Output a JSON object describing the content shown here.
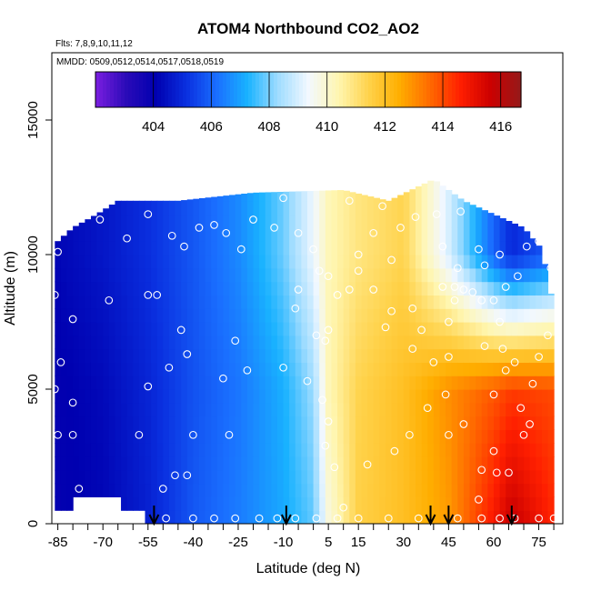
{
  "chart_data": {
    "type": "heatmap",
    "title": "ATOM4 Northbound CO2_AO2",
    "flights_label": "Flts: 7,8,9,10,11,12",
    "dates_label": "MMDD: 0509,0512,0514,0517,0518,0519",
    "xlabel": "Latitude (deg N)",
    "ylabel": "Altitude (m)",
    "xlim": [
      -87,
      83
    ],
    "ylim": [
      0,
      17500
    ],
    "x_ticks": [
      -85,
      -70,
      -55,
      -40,
      -25,
      -10,
      5,
      15,
      30,
      45,
      60,
      75
    ],
    "y_ticks": [
      0,
      5000,
      10000,
      15000
    ],
    "colorbar": {
      "min": 402,
      "max": 416.7,
      "ticks": [
        404,
        406,
        408,
        410,
        412,
        414,
        416
      ],
      "colors": [
        "#7b1ee0",
        "#2b0bb8",
        "#0000b0",
        "#0a30e0",
        "#1a6fff",
        "#19b2ff",
        "#9fdcff",
        "#f2f8ff",
        "#fff6b0",
        "#ffd24a",
        "#ffae00",
        "#ff6a00",
        "#ff1f00",
        "#cc0000",
        "#951a1a"
      ]
    },
    "co2_section": {
      "description_units": "ppm",
      "lat_bounds": [
        -86,
        80
      ],
      "alt_top_by_lat": [
        [
          -86,
          8500
        ],
        [
          -85,
          10500
        ],
        [
          -80,
          11000
        ],
        [
          -72,
          11500
        ],
        [
          -65,
          12000
        ],
        [
          -45,
          12000
        ],
        [
          -20,
          12300
        ],
        [
          10,
          12400
        ],
        [
          25,
          12000
        ],
        [
          40,
          12800
        ],
        [
          50,
          12000
        ],
        [
          60,
          11500
        ],
        [
          70,
          11000
        ],
        [
          76,
          10200
        ],
        [
          80,
          8000
        ]
      ],
      "surface_start_by_lat": [
        [
          -86,
          600
        ],
        [
          -80,
          1000
        ],
        [
          -70,
          1300
        ],
        [
          -58,
          600
        ],
        [
          -52,
          0
        ]
      ],
      "profiles": [
        {
          "lat": -86,
          "values": [
            [
              0,
              404.0
            ],
            [
              5000,
              404.0
            ],
            [
              10000,
              404.2
            ]
          ]
        },
        {
          "lat": -70,
          "values": [
            [
              0,
              404.2
            ],
            [
              5000,
              404.3
            ],
            [
              10000,
              404.6
            ]
          ]
        },
        {
          "lat": -55,
          "values": [
            [
              0,
              404.8
            ],
            [
              5000,
              404.9
            ],
            [
              10000,
              405.1
            ]
          ]
        },
        {
          "lat": -40,
          "values": [
            [
              0,
              405.8
            ],
            [
              5000,
              405.7
            ],
            [
              10000,
              405.8
            ]
          ]
        },
        {
          "lat": -25,
          "values": [
            [
              0,
              406.4
            ],
            [
              5000,
              406.3
            ],
            [
              10000,
              406.6
            ]
          ]
        },
        {
          "lat": -10,
          "values": [
            [
              0,
              407.1
            ],
            [
              5000,
              407.2
            ],
            [
              10000,
              407.9
            ]
          ]
        },
        {
          "lat": 0,
          "values": [
            [
              0,
              407.8
            ],
            [
              5000,
              408.3
            ],
            [
              10000,
              409.3
            ]
          ]
        },
        {
          "lat": 5,
          "values": [
            [
              0,
              409.8
            ],
            [
              5000,
              410.3
            ],
            [
              10000,
              410.3
            ]
          ]
        },
        {
          "lat": 15,
          "values": [
            [
              0,
              411.5
            ],
            [
              5000,
              411.4
            ],
            [
              10000,
              410.9
            ]
          ]
        },
        {
          "lat": 30,
          "values": [
            [
              0,
              412.0
            ],
            [
              5000,
              412.0
            ],
            [
              10000,
              411.4
            ]
          ]
        },
        {
          "lat": 45,
          "values": [
            [
              0,
              412.8
            ],
            [
              5000,
              413.0
            ],
            [
              10000,
              409.0
            ]
          ]
        },
        {
          "lat": 60,
          "values": [
            [
              0,
              414.8
            ],
            [
              5000,
              413.8
            ],
            [
              10000,
              406.0
            ]
          ]
        },
        {
          "lat": 66,
          "values": [
            [
              0,
              415.8
            ],
            [
              5000,
              414.2
            ],
            [
              10000,
              405.0
            ]
          ]
        },
        {
          "lat": 80,
          "values": [
            [
              0,
              414.5
            ],
            [
              5000,
              414.0
            ],
            [
              10000,
              406.0
            ]
          ]
        }
      ]
    },
    "sample_points": [
      [
        -85,
        10100
      ],
      [
        -86,
        8500
      ],
      [
        -80,
        7600
      ],
      [
        -84,
        6000
      ],
      [
        -86,
        5000
      ],
      [
        -80,
        4500
      ],
      [
        -85,
        3300
      ],
      [
        -80,
        3300
      ],
      [
        -78,
        1300
      ],
      [
        -71,
        11300
      ],
      [
        -55,
        11500
      ],
      [
        -47,
        10700
      ],
      [
        -38,
        11000
      ],
      [
        -43,
        10300
      ],
      [
        -62,
        10600
      ],
      [
        -52,
        8500
      ],
      [
        -55,
        8500
      ],
      [
        -68,
        8300
      ],
      [
        -44,
        7200
      ],
      [
        -48,
        5800
      ],
      [
        -42,
        6300
      ],
      [
        -55,
        5100
      ],
      [
        -58,
        3300
      ],
      [
        -46,
        1800
      ],
      [
        -42,
        1800
      ],
      [
        -50,
        1300
      ],
      [
        -58,
        200
      ],
      [
        -49,
        200
      ],
      [
        -40,
        200
      ],
      [
        -33,
        200
      ],
      [
        -26,
        200
      ],
      [
        -18,
        200
      ],
      [
        -12,
        200
      ],
      [
        -6,
        200
      ],
      [
        1,
        200
      ],
      [
        -40,
        3300
      ],
      [
        -28,
        3300
      ],
      [
        -30,
        5400
      ],
      [
        -22,
        5700
      ],
      [
        -10,
        5800
      ],
      [
        -26,
        6800
      ],
      [
        -33,
        11100
      ],
      [
        -20,
        11300
      ],
      [
        -29,
        10800
      ],
      [
        -24,
        10200
      ],
      [
        -13,
        11000
      ],
      [
        -5,
        10800
      ],
      [
        0,
        10200
      ],
      [
        2,
        9400
      ],
      [
        5,
        9200
      ],
      [
        8,
        8500
      ],
      [
        12,
        8700
      ],
      [
        -5,
        8700
      ],
      [
        -6,
        8000
      ],
      [
        1,
        7000
      ],
      [
        4,
        6800
      ],
      [
        5,
        7200
      ],
      [
        -2,
        5300
      ],
      [
        3,
        4600
      ],
      [
        5,
        3800
      ],
      [
        4,
        2900
      ],
      [
        7,
        2100
      ],
      [
        8,
        200
      ],
      [
        10,
        600
      ],
      [
        15,
        200
      ],
      [
        25,
        200
      ],
      [
        35,
        200
      ],
      [
        48,
        200
      ],
      [
        56,
        200
      ],
      [
        62,
        200
      ],
      [
        67,
        200
      ],
      [
        75,
        200
      ],
      [
        80,
        200
      ],
      [
        18,
        2200
      ],
      [
        27,
        2700
      ],
      [
        32,
        3300
      ],
      [
        38,
        4300
      ],
      [
        44,
        4800
      ],
      [
        45,
        3300
      ],
      [
        50,
        3700
      ],
      [
        56,
        2000
      ],
      [
        60,
        2700
      ],
      [
        55,
        900
      ],
      [
        61,
        1900
      ],
      [
        65,
        1900
      ],
      [
        70,
        3300
      ],
      [
        45,
        6200
      ],
      [
        40,
        6000
      ],
      [
        33,
        6500
      ],
      [
        36,
        7200
      ],
      [
        45,
        7500
      ],
      [
        47,
        8300
      ],
      [
        43,
        8800
      ],
      [
        47,
        8800
      ],
      [
        50,
        8700
      ],
      [
        53,
        8600
      ],
      [
        56,
        8300
      ],
      [
        60,
        8300
      ],
      [
        62,
        7500
      ],
      [
        57,
        6600
      ],
      [
        63,
        6500
      ],
      [
        67,
        6000
      ],
      [
        64,
        5700
      ],
      [
        60,
        4800
      ],
      [
        69,
        4300
      ],
      [
        72,
        3700
      ],
      [
        73,
        5200
      ],
      [
        75,
        6200
      ],
      [
        78,
        7000
      ],
      [
        82,
        8700
      ],
      [
        79,
        9500
      ],
      [
        78,
        10400
      ],
      [
        75,
        10500
      ],
      [
        71,
        10300
      ],
      [
        62,
        10000
      ],
      [
        68,
        9200
      ],
      [
        64,
        8800
      ],
      [
        57,
        9600
      ],
      [
        48,
        9500
      ],
      [
        43,
        10300
      ],
      [
        26,
        9800
      ],
      [
        34,
        11400
      ],
      [
        41,
        11500
      ],
      [
        49,
        11600
      ],
      [
        55,
        10200
      ],
      [
        29,
        11000
      ],
      [
        20,
        10800
      ],
      [
        15,
        9400
      ],
      [
        15,
        10000
      ],
      [
        20,
        8700
      ],
      [
        26,
        7900
      ],
      [
        24,
        7300
      ],
      [
        33,
        8000
      ],
      [
        12,
        12000
      ],
      [
        23,
        11800
      ],
      [
        -10,
        12100
      ]
    ],
    "annotation_arrows_lat": [
      -53,
      -9,
      39,
      45,
      66
    ]
  }
}
